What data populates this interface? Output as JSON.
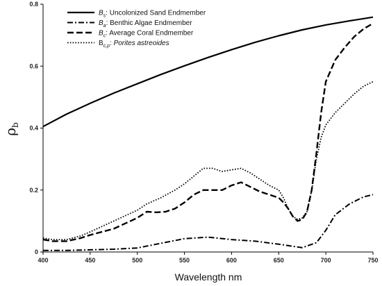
{
  "chart_data": {
    "type": "line",
    "title": "",
    "xlabel": "Wavelength nm",
    "ylabel": "ρ",
    "ylabel_subscript": "b",
    "xlim": [
      400,
      750
    ],
    "ylim": [
      0,
      0.8
    ],
    "xticks": [
      "400",
      "450",
      "500",
      "550",
      "600",
      "650",
      "700",
      "750"
    ],
    "yticks": [
      "0",
      "0.2",
      "0.4",
      "0.6",
      "0.8"
    ],
    "grid": false,
    "legend_position": "top-left",
    "series": [
      {
        "name": "Uncolonized Sand Endmember",
        "symbol": "B",
        "symbol_subscript": "s",
        "sep": ":  ",
        "name_italic": false,
        "style": "solid",
        "x": [
          400,
          425,
          450,
          475,
          500,
          525,
          550,
          575,
          600,
          625,
          650,
          675,
          700,
          725,
          750
        ],
        "y": [
          0.405,
          0.445,
          0.48,
          0.513,
          0.543,
          0.573,
          0.601,
          0.628,
          0.653,
          0.677,
          0.698,
          0.717,
          0.733,
          0.746,
          0.758
        ]
      },
      {
        "name": "Benthic Algae Endmember",
        "symbol": "B",
        "symbol_subscript": "a",
        "sep": ":  ",
        "name_italic": false,
        "style": "dashdot",
        "x": [
          400,
          425,
          450,
          475,
          500,
          525,
          550,
          575,
          600,
          625,
          650,
          675,
          690,
          700,
          710,
          725,
          740,
          750
        ],
        "y": [
          0.005,
          0.005,
          0.007,
          0.009,
          0.013,
          0.028,
          0.043,
          0.048,
          0.04,
          0.035,
          0.025,
          0.014,
          0.03,
          0.07,
          0.12,
          0.155,
          0.178,
          0.185
        ]
      },
      {
        "name": "Average Coral Endmember",
        "symbol": "B",
        "symbol_subscript": "c",
        "sep": ":  ",
        "name_italic": false,
        "style": "dashed",
        "x": [
          400,
          410,
          425,
          440,
          450,
          475,
          500,
          510,
          520,
          530,
          540,
          550,
          560,
          570,
          580,
          590,
          600,
          610,
          620,
          630,
          640,
          650,
          655,
          660,
          665,
          670,
          675,
          680,
          685,
          690,
          695,
          700,
          710,
          720,
          730,
          740,
          750
        ],
        "y": [
          0.04,
          0.035,
          0.035,
          0.045,
          0.055,
          0.075,
          0.11,
          0.13,
          0.128,
          0.13,
          0.14,
          0.16,
          0.185,
          0.2,
          0.2,
          0.2,
          0.215,
          0.225,
          0.21,
          0.195,
          0.185,
          0.175,
          0.16,
          0.14,
          0.115,
          0.1,
          0.105,
          0.13,
          0.2,
          0.32,
          0.45,
          0.55,
          0.62,
          0.66,
          0.695,
          0.72,
          0.738
        ]
      },
      {
        "name": "Porites astreoides",
        "symbol": "B",
        "symbol_subscript": "c,p",
        "sep": ": ",
        "name_italic": true,
        "style": "dotted",
        "x": [
          400,
          410,
          425,
          440,
          450,
          475,
          500,
          510,
          525,
          540,
          550,
          560,
          570,
          580,
          590,
          600,
          610,
          620,
          630,
          640,
          650,
          655,
          660,
          665,
          670,
          675,
          680,
          685,
          690,
          695,
          700,
          710,
          720,
          730,
          740,
          750
        ],
        "y": [
          0.045,
          0.04,
          0.04,
          0.052,
          0.065,
          0.1,
          0.135,
          0.155,
          0.175,
          0.2,
          0.22,
          0.245,
          0.27,
          0.27,
          0.26,
          0.265,
          0.27,
          0.255,
          0.235,
          0.215,
          0.2,
          0.175,
          0.14,
          0.115,
          0.105,
          0.11,
          0.13,
          0.2,
          0.3,
          0.37,
          0.41,
          0.45,
          0.48,
          0.51,
          0.535,
          0.55
        ]
      }
    ]
  }
}
